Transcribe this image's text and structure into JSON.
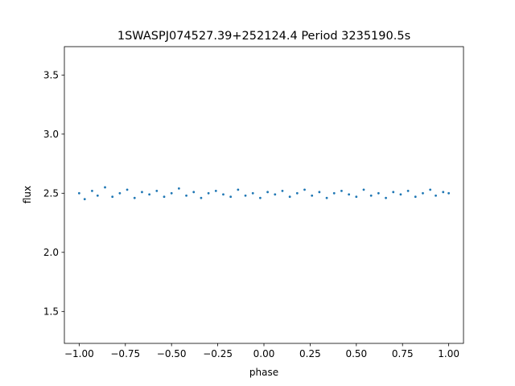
{
  "chart_data": {
    "type": "scatter",
    "title": "1SWASPJ074527.39+252124.4 Period 3235190.5s",
    "xlabel": "phase",
    "ylabel": "flux",
    "xlim": [
      -1.08,
      1.08
    ],
    "ylim": [
      1.23,
      3.74
    ],
    "xticks": [
      -1.0,
      -0.75,
      -0.5,
      -0.25,
      0.0,
      0.25,
      0.5,
      0.75,
      1.0
    ],
    "xtick_labels": [
      "−1.00",
      "−0.75",
      "−0.50",
      "−0.25",
      "0.00",
      "0.25",
      "0.50",
      "0.75",
      "1.00"
    ],
    "yticks": [
      1.5,
      2.0,
      2.5,
      3.0,
      3.5
    ],
    "ytick_labels": [
      "1.5",
      "2.0",
      "2.5",
      "3.0",
      "3.5"
    ],
    "grid": false,
    "marker_color": "#1f77b4",
    "series": [
      {
        "name": "",
        "x": [
          -1.0,
          -0.97,
          -0.93,
          -0.9,
          -0.86,
          -0.82,
          -0.78,
          -0.74,
          -0.7,
          -0.66,
          -0.62,
          -0.58,
          -0.54,
          -0.5,
          -0.46,
          -0.42,
          -0.38,
          -0.34,
          -0.3,
          -0.26,
          -0.22,
          -0.18,
          -0.14,
          -0.1,
          -0.06,
          -0.02,
          0.02,
          0.06,
          0.1,
          0.14,
          0.18,
          0.22,
          0.26,
          0.3,
          0.34,
          0.38,
          0.42,
          0.46,
          0.5,
          0.54,
          0.58,
          0.62,
          0.66,
          0.7,
          0.74,
          0.78,
          0.82,
          0.86,
          0.9,
          0.93,
          0.97,
          1.0
        ],
        "y": [
          2.5,
          2.45,
          2.52,
          2.48,
          2.55,
          2.47,
          2.5,
          2.53,
          2.46,
          2.51,
          2.49,
          2.52,
          2.47,
          2.5,
          2.54,
          2.48,
          2.51,
          2.46,
          2.5,
          2.52,
          2.49,
          2.47,
          2.53,
          2.48,
          2.5,
          2.46,
          2.51,
          2.49,
          2.52,
          2.47,
          2.5,
          2.53,
          2.48,
          2.51,
          2.46,
          2.5,
          2.52,
          2.49,
          2.47,
          2.53,
          2.48,
          2.5,
          2.46,
          2.51,
          2.49,
          2.52,
          2.47,
          2.5,
          2.53,
          2.48,
          2.51,
          2.5
        ]
      }
    ]
  }
}
